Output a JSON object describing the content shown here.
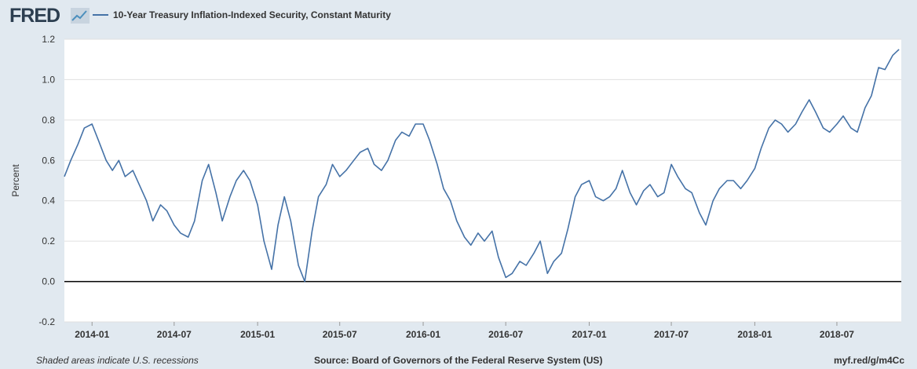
{
  "header": {
    "logo_text": "FRED",
    "logo_icon": "trend-chart-icon",
    "legend_label": "10-Year Treasury Inflation-Indexed Security, Constant Maturity",
    "series_color": "#4572a7"
  },
  "footer": {
    "recession_note": "Shaded areas indicate U.S. recessions",
    "source": "Source: Board of Governors of the Federal Reserve System (US)",
    "short_url": "myf.red/g/m4Cc"
  },
  "chart_data": {
    "type": "line",
    "title": "",
    "xlabel": "",
    "ylabel": "Percent",
    "ylim": [
      -0.2,
      1.2
    ],
    "xlim": [
      "2013-11-01",
      "2018-11-20"
    ],
    "grid": true,
    "legend_position": "top-left",
    "x_ticks": [
      "2014-01",
      "2014-07",
      "2015-01",
      "2015-07",
      "2016-01",
      "2016-07",
      "2017-01",
      "2017-07",
      "2018-01",
      "2018-07"
    ],
    "y_ticks": [
      "-0.2",
      "0.0",
      "0.2",
      "0.4",
      "0.6",
      "0.8",
      "1.0",
      "1.2"
    ],
    "series": [
      {
        "name": "10-Year Treasury Inflation-Indexed Security, Constant Maturity",
        "points": [
          [
            "2013-11-01",
            0.52
          ],
          [
            "2013-11-15",
            0.6
          ],
          [
            "2013-12-01",
            0.68
          ],
          [
            "2013-12-15",
            0.76
          ],
          [
            "2014-01-01",
            0.78
          ],
          [
            "2014-01-15",
            0.7
          ],
          [
            "2014-02-01",
            0.6
          ],
          [
            "2014-02-15",
            0.55
          ],
          [
            "2014-03-01",
            0.6
          ],
          [
            "2014-03-15",
            0.52
          ],
          [
            "2014-04-01",
            0.55
          ],
          [
            "2014-04-15",
            0.48
          ],
          [
            "2014-05-01",
            0.4
          ],
          [
            "2014-05-15",
            0.3
          ],
          [
            "2014-06-01",
            0.38
          ],
          [
            "2014-06-15",
            0.35
          ],
          [
            "2014-07-01",
            0.28
          ],
          [
            "2014-07-15",
            0.24
          ],
          [
            "2014-08-01",
            0.22
          ],
          [
            "2014-08-15",
            0.3
          ],
          [
            "2014-09-01",
            0.5
          ],
          [
            "2014-09-15",
            0.58
          ],
          [
            "2014-10-01",
            0.44
          ],
          [
            "2014-10-15",
            0.3
          ],
          [
            "2014-11-01",
            0.42
          ],
          [
            "2014-11-15",
            0.5
          ],
          [
            "2014-12-01",
            0.55
          ],
          [
            "2014-12-15",
            0.5
          ],
          [
            "2015-01-01",
            0.38
          ],
          [
            "2015-01-15",
            0.2
          ],
          [
            "2015-02-01",
            0.06
          ],
          [
            "2015-02-15",
            0.28
          ],
          [
            "2015-03-01",
            0.42
          ],
          [
            "2015-03-15",
            0.3
          ],
          [
            "2015-04-01",
            0.08
          ],
          [
            "2015-04-15",
            0.0
          ],
          [
            "2015-05-01",
            0.25
          ],
          [
            "2015-05-15",
            0.42
          ],
          [
            "2015-06-01",
            0.48
          ],
          [
            "2015-06-15",
            0.58
          ],
          [
            "2015-07-01",
            0.52
          ],
          [
            "2015-07-15",
            0.55
          ],
          [
            "2015-08-01",
            0.6
          ],
          [
            "2015-08-15",
            0.64
          ],
          [
            "2015-09-01",
            0.66
          ],
          [
            "2015-09-15",
            0.58
          ],
          [
            "2015-10-01",
            0.55
          ],
          [
            "2015-10-15",
            0.6
          ],
          [
            "2015-11-01",
            0.7
          ],
          [
            "2015-11-15",
            0.74
          ],
          [
            "2015-12-01",
            0.72
          ],
          [
            "2015-12-15",
            0.78
          ],
          [
            "2016-01-01",
            0.78
          ],
          [
            "2016-01-15",
            0.7
          ],
          [
            "2016-02-01",
            0.58
          ],
          [
            "2016-02-15",
            0.46
          ],
          [
            "2016-03-01",
            0.4
          ],
          [
            "2016-03-15",
            0.3
          ],
          [
            "2016-04-01",
            0.22
          ],
          [
            "2016-04-15",
            0.18
          ],
          [
            "2016-05-01",
            0.24
          ],
          [
            "2016-05-15",
            0.2
          ],
          [
            "2016-06-01",
            0.25
          ],
          [
            "2016-06-15",
            0.12
          ],
          [
            "2016-07-01",
            0.02
          ],
          [
            "2016-07-15",
            0.04
          ],
          [
            "2016-08-01",
            0.1
          ],
          [
            "2016-08-15",
            0.08
          ],
          [
            "2016-09-01",
            0.14
          ],
          [
            "2016-09-15",
            0.2
          ],
          [
            "2016-10-01",
            0.04
          ],
          [
            "2016-10-15",
            0.1
          ],
          [
            "2016-11-01",
            0.14
          ],
          [
            "2016-11-15",
            0.26
          ],
          [
            "2016-12-01",
            0.42
          ],
          [
            "2016-12-15",
            0.48
          ],
          [
            "2017-01-01",
            0.5
          ],
          [
            "2017-01-15",
            0.42
          ],
          [
            "2017-02-01",
            0.4
          ],
          [
            "2017-02-15",
            0.42
          ],
          [
            "2017-03-01",
            0.46
          ],
          [
            "2017-03-15",
            0.55
          ],
          [
            "2017-04-01",
            0.44
          ],
          [
            "2017-04-15",
            0.38
          ],
          [
            "2017-05-01",
            0.45
          ],
          [
            "2017-05-15",
            0.48
          ],
          [
            "2017-06-01",
            0.42
          ],
          [
            "2017-06-15",
            0.44
          ],
          [
            "2017-07-01",
            0.58
          ],
          [
            "2017-07-15",
            0.52
          ],
          [
            "2017-08-01",
            0.46
          ],
          [
            "2017-08-15",
            0.44
          ],
          [
            "2017-09-01",
            0.34
          ],
          [
            "2017-09-15",
            0.28
          ],
          [
            "2017-10-01",
            0.4
          ],
          [
            "2017-10-15",
            0.46
          ],
          [
            "2017-11-01",
            0.5
          ],
          [
            "2017-11-15",
            0.5
          ],
          [
            "2017-12-01",
            0.46
          ],
          [
            "2017-12-15",
            0.5
          ],
          [
            "2018-01-01",
            0.56
          ],
          [
            "2018-01-15",
            0.66
          ],
          [
            "2018-02-01",
            0.76
          ],
          [
            "2018-02-15",
            0.8
          ],
          [
            "2018-03-01",
            0.78
          ],
          [
            "2018-03-15",
            0.74
          ],
          [
            "2018-04-01",
            0.78
          ],
          [
            "2018-04-15",
            0.84
          ],
          [
            "2018-05-01",
            0.9
          ],
          [
            "2018-05-15",
            0.84
          ],
          [
            "2018-06-01",
            0.76
          ],
          [
            "2018-06-15",
            0.74
          ],
          [
            "2018-07-01",
            0.78
          ],
          [
            "2018-07-15",
            0.82
          ],
          [
            "2018-08-01",
            0.76
          ],
          [
            "2018-08-15",
            0.74
          ],
          [
            "2018-09-01",
            0.86
          ],
          [
            "2018-09-15",
            0.92
          ],
          [
            "2018-10-01",
            1.06
          ],
          [
            "2018-10-15",
            1.05
          ],
          [
            "2018-11-01",
            1.12
          ],
          [
            "2018-11-15",
            1.15
          ]
        ]
      }
    ]
  }
}
